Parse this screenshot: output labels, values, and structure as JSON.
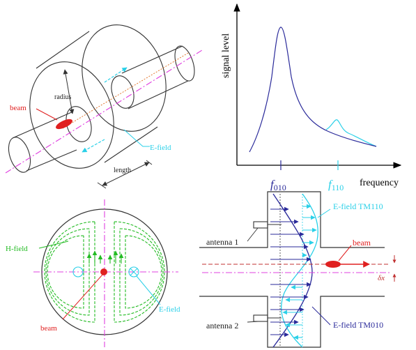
{
  "colors": {
    "line": "#333333",
    "beam": "#e02020",
    "efield": "#2ad0e8",
    "hfield": "#22bb22",
    "tm010": "#2a2a9a",
    "axis": "#e040e0",
    "orange": "#e06a1a",
    "beamline": "#c03030"
  },
  "cavity": {
    "label_beam": "beam",
    "label_radius": "radius",
    "label_efield": "E-field",
    "label_length": "length"
  },
  "cross_section": {
    "label_hfield": "H-field",
    "label_efield": "E-field",
    "label_beam": "beam"
  },
  "spectrum": {
    "ylabel": "signal level",
    "xlabel": "frequency",
    "tick_f010_main": "f",
    "tick_f010_sub": "010",
    "tick_f110_main": "f",
    "tick_f110_sub": "110"
  },
  "chart_data": {
    "type": "line",
    "title": "",
    "xlabel": "frequency",
    "ylabel": "signal level",
    "x_ticks": [
      "f010",
      "f110"
    ],
    "series": [
      {
        "name": "",
        "peak_at": "f010"
      },
      {
        "name": "",
        "peak_at": "f110"
      }
    ],
    "grid": false
  },
  "side_view": {
    "label_antenna1": "antenna 1",
    "label_antenna2": "antenna 2",
    "label_tm110": "E-field TM110",
    "label_tm010": "E-field TM010",
    "label_beam": "beam",
    "label_dx": "δx"
  }
}
